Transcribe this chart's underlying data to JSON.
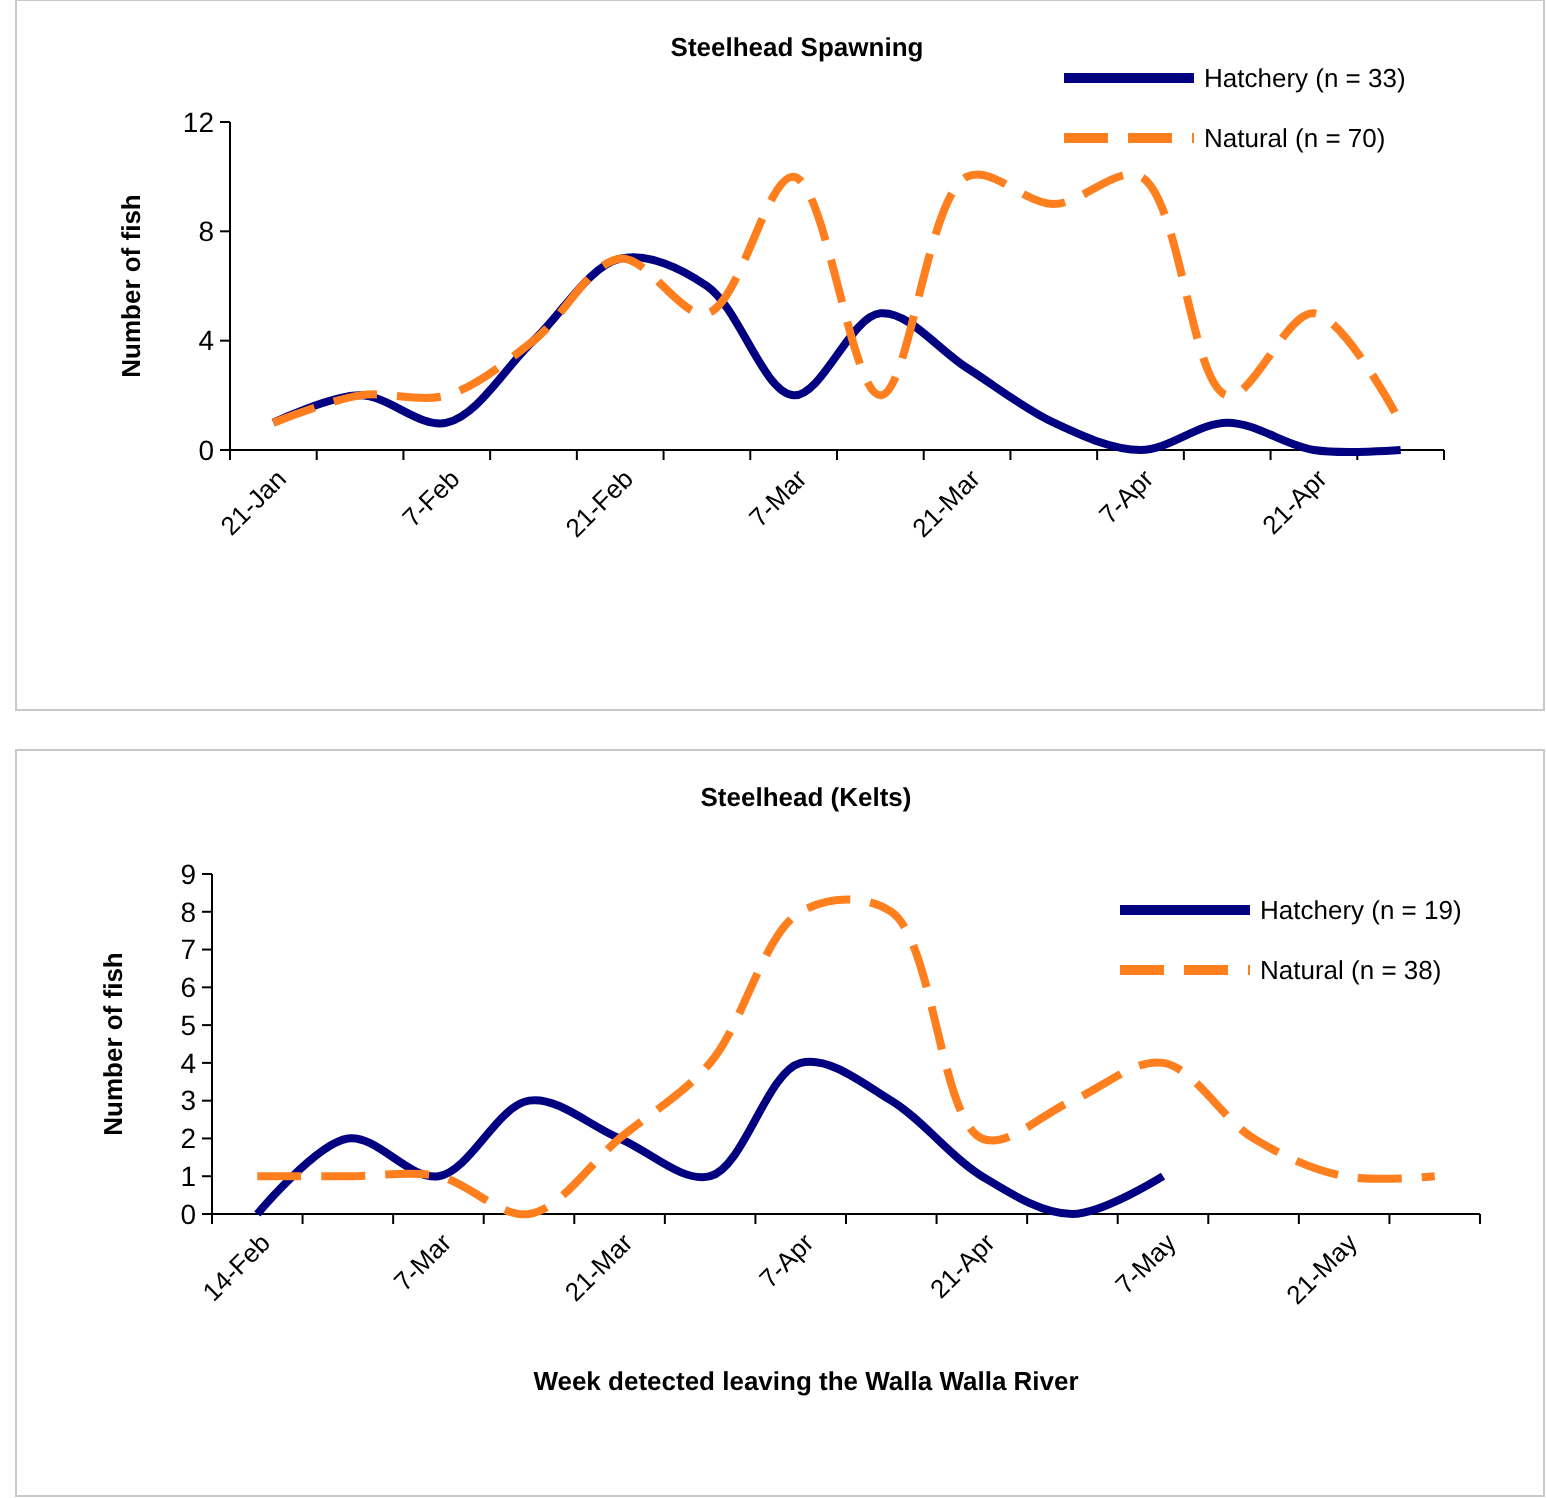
{
  "chart_data": [
    {
      "type": "line",
      "title": "Steelhead Spawning",
      "ylabel": "Number of fish",
      "categories": [
        "21-Jan",
        null,
        "7-Feb",
        null,
        "21-Feb",
        null,
        "7-Mar",
        null,
        "21-Mar",
        null,
        "7-Apr",
        null,
        "21-Apr",
        null
      ],
      "ylim": [
        0,
        12
      ],
      "yticks": [
        0,
        4,
        8,
        12
      ],
      "legend": "top right",
      "series": [
        {
          "name": "Hatchery (n = 33)",
          "color": "#000080",
          "line_style": "solid",
          "values": [
            1,
            2,
            1,
            4,
            7,
            6,
            2,
            5,
            3,
            1,
            0,
            1,
            0,
            0
          ]
        },
        {
          "name": "Natural (n = 70)",
          "color": "#ff7f1e",
          "line_style": "dashed",
          "values": [
            1,
            2,
            2,
            4,
            7,
            5,
            10,
            2,
            10,
            9,
            10,
            2,
            5,
            1
          ]
        }
      ]
    },
    {
      "type": "line",
      "title": "Steelhead (Kelts)",
      "ylabel": "Number of fish",
      "xlabel": "Week detected leaving the Walla Walla River",
      "categories": [
        "14-Feb",
        null,
        "7-Mar",
        null,
        "21-Mar",
        null,
        "7-Apr",
        null,
        "21-Apr",
        null,
        "7-May",
        null,
        "21-May",
        null
      ],
      "ylim": [
        0,
        9
      ],
      "yticks": [
        0,
        1,
        2,
        3,
        4,
        5,
        6,
        7,
        8,
        9
      ],
      "legend": "right",
      "series": [
        {
          "name": "Hatchery (n = 19)",
          "color": "#000080",
          "line_style": "solid",
          "values": [
            0,
            2,
            1,
            3,
            2,
            1,
            4,
            3,
            1,
            0,
            1,
            null,
            null,
            null
          ]
        },
        {
          "name": "Natural (n = 38)",
          "color": "#ff7f1e",
          "line_style": "dashed",
          "values": [
            1,
            1,
            1,
            0,
            2,
            4,
            8,
            8,
            2,
            3,
            4,
            2,
            1,
            1
          ]
        }
      ]
    }
  ]
}
